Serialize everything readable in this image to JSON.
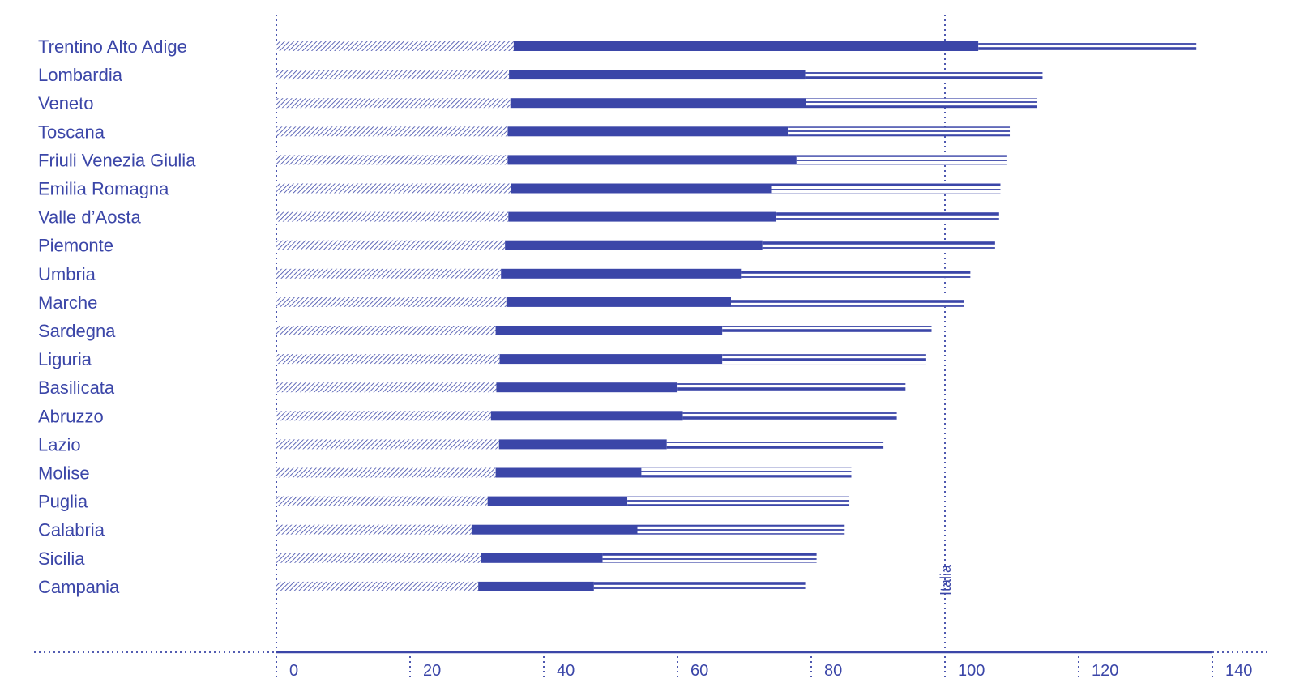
{
  "chart_data": {
    "type": "bar",
    "stacked": true,
    "orientation": "horizontal",
    "categories": [
      "Trentino Alto Adige",
      "Lombardia",
      "Veneto",
      "Toscana",
      "Friuli Venezia Giulia",
      "Emilia Romagna",
      "Valle d’Aosta",
      "Piemonte",
      "Umbria",
      "Marche",
      "Sardegna",
      "Liguria",
      "Basilicata",
      "Abruzzo",
      "Lazio",
      "Molise",
      "Puglia",
      "Calabria",
      "Sicilia",
      "Campania"
    ],
    "series": [
      {
        "pattern": "diagonal-hatch",
        "values": [
          35.5,
          34.8,
          35.0,
          34.6,
          34.6,
          35.1,
          34.7,
          34.2,
          33.6,
          34.4,
          32.8,
          33.4,
          32.9,
          32.1,
          33.3,
          32.8,
          31.6,
          29.2,
          30.6,
          30.2
        ]
      },
      {
        "pattern": "solid",
        "values": [
          69.5,
          44.3,
          44.2,
          41.9,
          43.2,
          38.9,
          40.1,
          38.5,
          35.9,
          33.6,
          33.9,
          33.3,
          27.0,
          28.7,
          25.1,
          21.8,
          20.9,
          24.8,
          18.2,
          17.3
        ]
      },
      {
        "pattern": "triple-line",
        "values": [
          32.6,
          35.5,
          34.5,
          33.2,
          31.4,
          34.3,
          33.3,
          34.8,
          34.3,
          34.8,
          31.3,
          30.5,
          34.2,
          32.0,
          32.4,
          31.4,
          33.2,
          31.0,
          32.0,
          31.6
        ]
      }
    ],
    "xlim": [
      0,
      140
    ],
    "xticks": [
      0,
      20,
      40,
      60,
      80,
      100,
      120,
      140
    ],
    "tick_labels": [
      "0",
      "20",
      "40",
      "60",
      "80",
      "100",
      "120",
      "140"
    ],
    "reference_line": {
      "value": 100,
      "label": "Italia"
    },
    "grid": false,
    "legend": "none"
  },
  "colors": {
    "primary": "#3b46a8",
    "background": "#ffffff"
  }
}
